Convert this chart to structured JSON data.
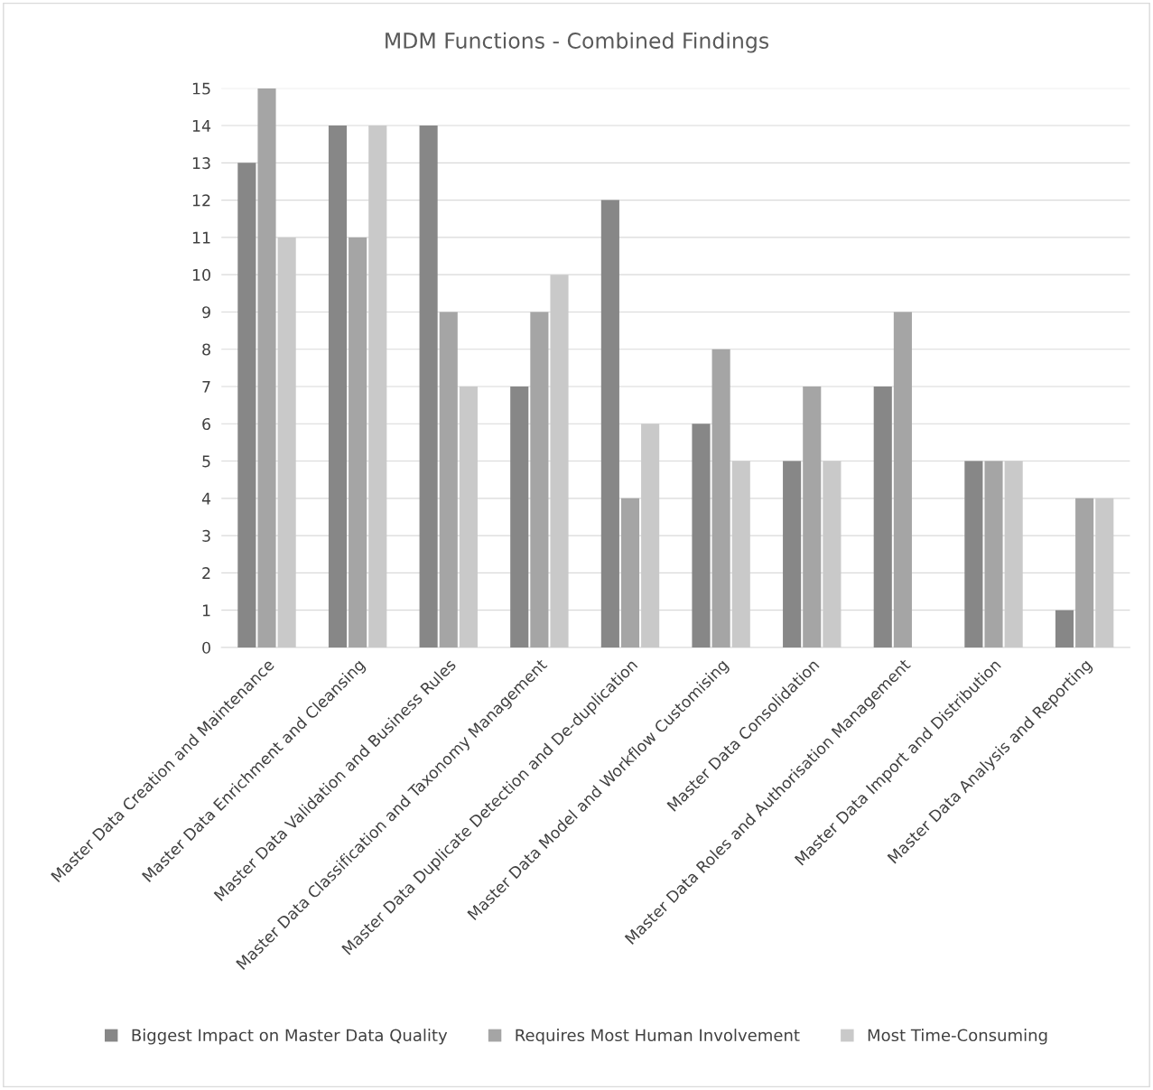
{
  "chart_data": {
    "type": "bar",
    "title": "MDM Functions - Combined Findings",
    "categories": [
      "Master Data Creation and Maintenance",
      "Master Data Enrichment and Cleansing",
      "Master Data Validation and Business Rules",
      "Master Data Classification and Taxonomy Management",
      "Master Data Duplicate Detection and De-duplication",
      "Master Data Model and Workflow Customising",
      "Master Data Consolidation",
      "Master Data Roles and Authorisation Management",
      "Master Data Import and Distribution",
      "Master Data Analysis and Reporting"
    ],
    "series": [
      {
        "name": "Biggest Impact on Master Data Quality",
        "color": "#878787",
        "values": [
          13,
          14,
          14,
          7,
          12,
          6,
          5,
          7,
          5,
          1
        ]
      },
      {
        "name": "Requires Most Human Involvement",
        "color": "#a5a5a5",
        "values": [
          15,
          11,
          9,
          9,
          4,
          8,
          7,
          9,
          5,
          4
        ]
      },
      {
        "name": "Most Time-Consuming",
        "color": "#c9c9c9",
        "values": [
          11,
          14,
          7,
          10,
          6,
          5,
          5,
          null,
          5,
          4
        ]
      }
    ],
    "ylim": [
      0,
      15
    ],
    "yticks": [
      0,
      1,
      2,
      3,
      4,
      5,
      6,
      7,
      8,
      9,
      10,
      11,
      12,
      13,
      14,
      15
    ],
    "grid": "y",
    "legend": "bottom"
  }
}
